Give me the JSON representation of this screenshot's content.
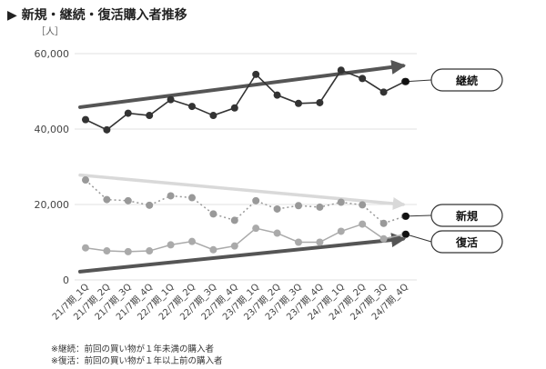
{
  "title": "▶ 新規・継続・復活購入者推移",
  "unit": "［人］",
  "footnotes": [
    "※継続：前回の買い物が１年未満の購入者",
    "※復活：前回の買い物が１年以上前の購入者"
  ],
  "chart_data": {
    "type": "line",
    "ylim": [
      0,
      60000
    ],
    "yticks": [
      0,
      20000,
      40000,
      60000
    ],
    "ytick_labels": [
      "0",
      "20,000",
      "40,000",
      "60,000"
    ],
    "categories": [
      "21/7期_1Q",
      "21/7期_2Q",
      "21/7期_3Q",
      "21/7期_4Q",
      "22/7期_1Q",
      "22/7期_2Q",
      "22/7期_3Q",
      "22/7期_4Q",
      "23/7期_1Q",
      "23/7期_2Q",
      "23/7期_3Q",
      "23/7期_4Q",
      "24/7期_1Q",
      "24/7期_2Q",
      "24/7期_3Q",
      "24/7期_4Q"
    ],
    "series": [
      {
        "name": "継続",
        "style": "solid-dark",
        "color": "#333333",
        "values": [
          42500,
          39800,
          44200,
          43600,
          47800,
          46000,
          43600,
          45600,
          54500,
          49000,
          46800,
          47000,
          55600,
          53400,
          49800,
          52600
        ]
      },
      {
        "name": "新規",
        "style": "dotted-gray",
        "color": "#999999",
        "values": [
          26500,
          21300,
          21000,
          19800,
          22300,
          21800,
          17500,
          15800,
          21000,
          18800,
          19700,
          19300,
          20600,
          19900,
          15000,
          16900
        ]
      },
      {
        "name": "復活",
        "style": "solid-light",
        "color": "#aaaaaa",
        "values": [
          8500,
          7700,
          7500,
          7700,
          9300,
          10200,
          8000,
          9000,
          13700,
          12400,
          10000,
          10000,
          12900,
          14800,
          10900,
          12100
        ]
      }
    ],
    "trend_arrows": [
      {
        "series": "継続",
        "from": 45800,
        "to": 56800,
        "color": "#555555"
      },
      {
        "series": "新規",
        "from": 27800,
        "to": 20000,
        "color": "#d9d9d9"
      },
      {
        "series": "復活",
        "from": 2200,
        "to": 10900,
        "color": "#555555"
      }
    ],
    "legend_placement": "right",
    "grid": "horizontal"
  }
}
